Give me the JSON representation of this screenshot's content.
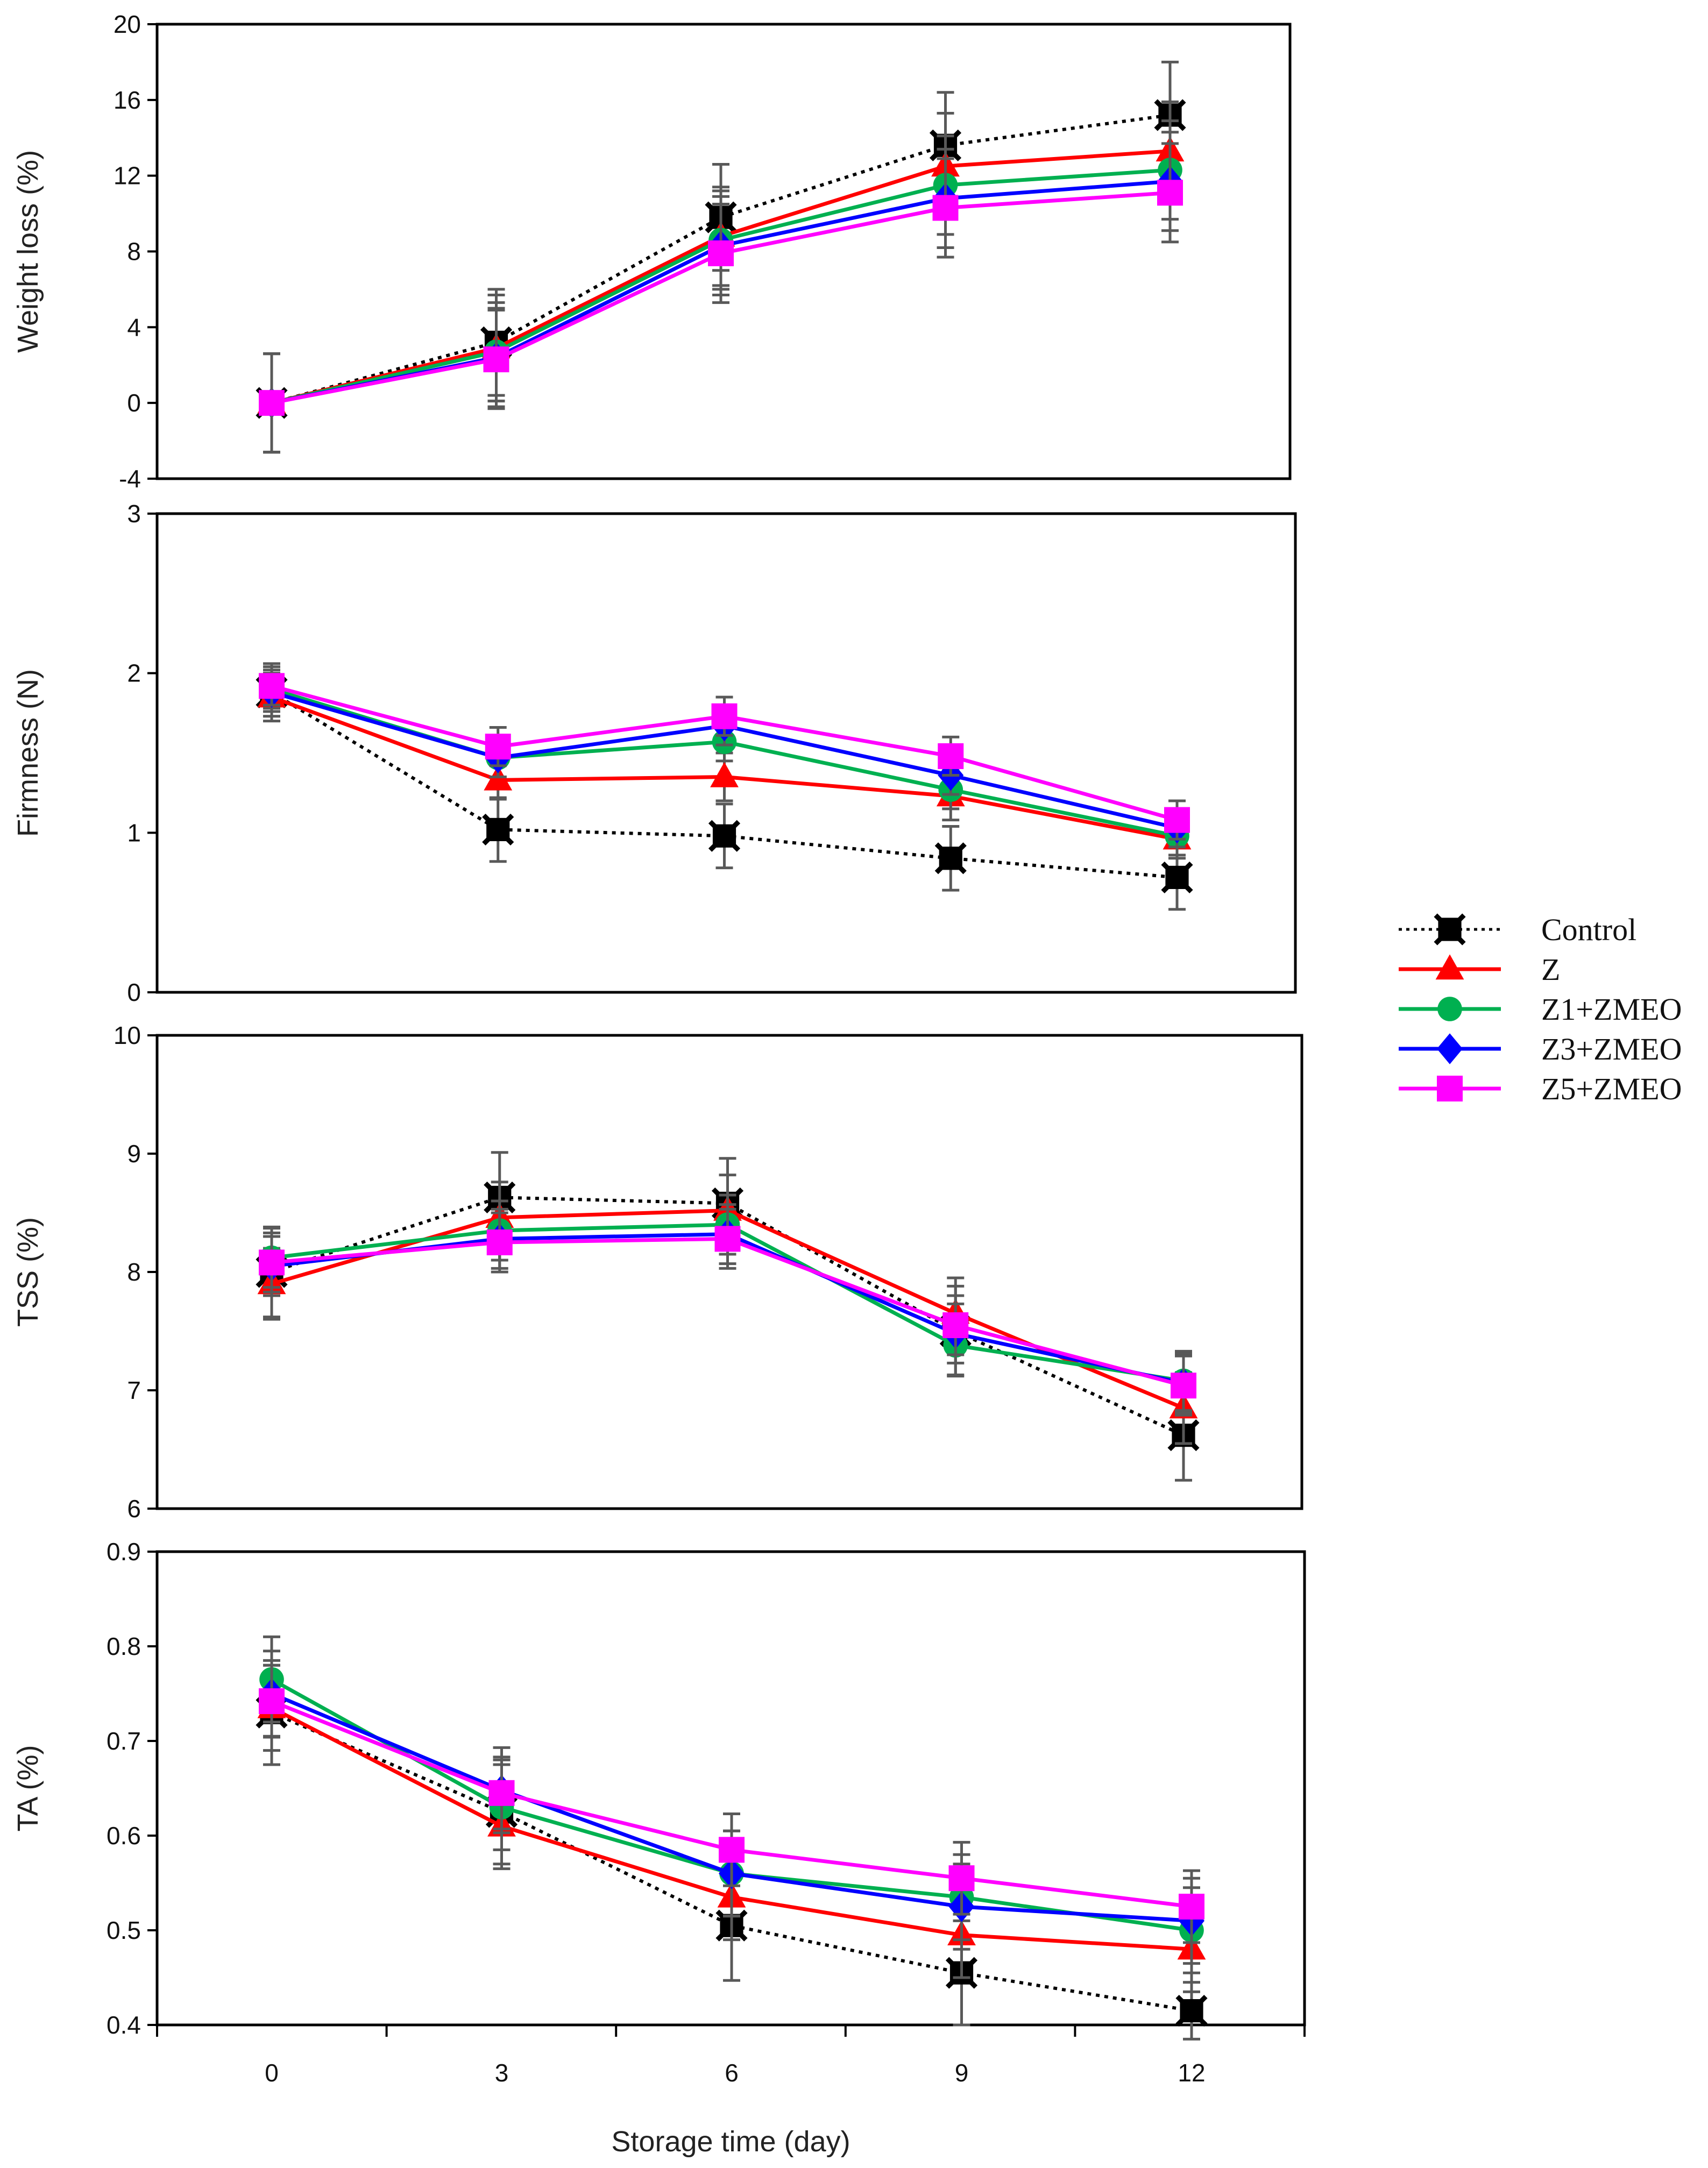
{
  "chart_data": [
    {
      "type": "line",
      "ylabel": "Weight loss (%)",
      "ylim": [
        -4,
        20
      ],
      "yticks": [
        -4,
        0,
        4,
        8,
        12,
        16,
        20
      ],
      "x": [
        0,
        3,
        6,
        9,
        12
      ],
      "series": [
        {
          "name": "Control",
          "values": [
            0,
            3.2,
            9.8,
            13.6,
            15.2
          ],
          "err": [
            2.6,
            2.8,
            2.8,
            2.8,
            2.8
          ]
        },
        {
          "name": "Z",
          "values": [
            0,
            2.9,
            8.8,
            12.5,
            13.3
          ],
          "err": [
            2.6,
            2.8,
            2.6,
            2.8,
            2.6
          ]
        },
        {
          "name": "Z1+ZMEO",
          "values": [
            0,
            2.7,
            8.6,
            11.5,
            12.3
          ],
          "err": [
            2.6,
            2.6,
            2.6,
            2.6,
            2.6
          ]
        },
        {
          "name": "Z3+ZMEO",
          "values": [
            0,
            2.4,
            8.3,
            10.8,
            11.7
          ],
          "err": [
            2.6,
            2.6,
            2.6,
            2.6,
            2.6
          ]
        },
        {
          "name": "Z5+ZMEO",
          "values": [
            0,
            2.3,
            7.9,
            10.3,
            11.1
          ],
          "err": [
            2.6,
            2.6,
            2.6,
            2.6,
            2.6
          ]
        }
      ]
    },
    {
      "type": "line",
      "ylabel": "Firmness (N)",
      "ylim": [
        0,
        3
      ],
      "yticks": [
        0,
        1,
        2,
        3
      ],
      "x": [
        0,
        3,
        6,
        9,
        12
      ],
      "series": [
        {
          "name": "Control",
          "values": [
            1.88,
            1.02,
            0.98,
            0.84,
            0.72
          ],
          "err": [
            0.18,
            0.2,
            0.2,
            0.2,
            0.2
          ]
        },
        {
          "name": "Z",
          "values": [
            1.85,
            1.33,
            1.35,
            1.23,
            0.96
          ],
          "err": [
            0.12,
            0.12,
            0.15,
            0.15,
            0.12
          ]
        },
        {
          "name": "Z1+ZMEO",
          "values": [
            1.9,
            1.47,
            1.57,
            1.27,
            0.98
          ],
          "err": [
            0.12,
            0.12,
            0.12,
            0.12,
            0.12
          ]
        },
        {
          "name": "Z3+ZMEO",
          "values": [
            1.88,
            1.47,
            1.67,
            1.36,
            1.03
          ],
          "err": [
            0.12,
            0.12,
            0.12,
            0.12,
            0.12
          ]
        },
        {
          "name": "Z5+ZMEO",
          "values": [
            1.92,
            1.54,
            1.73,
            1.48,
            1.08
          ],
          "err": [
            0.12,
            0.12,
            0.12,
            0.12,
            0.12
          ]
        }
      ]
    },
    {
      "type": "line",
      "ylabel": "TSS (%)",
      "ylim": [
        6,
        10
      ],
      "yticks": [
        6,
        7,
        8,
        9,
        10
      ],
      "x": [
        0,
        3,
        6,
        9,
        12
      ],
      "series": [
        {
          "name": "Control",
          "values": [
            8.0,
            8.63,
            8.58,
            7.5,
            6.62
          ],
          "err": [
            0.38,
            0.38,
            0.38,
            0.38,
            0.38
          ]
        },
        {
          "name": "Z",
          "values": [
            7.9,
            8.46,
            8.52,
            7.65,
            6.85
          ],
          "err": [
            0.3,
            0.3,
            0.3,
            0.3,
            0.3
          ]
        },
        {
          "name": "Z1+ZMEO",
          "values": [
            8.12,
            8.35,
            8.4,
            7.38,
            7.08
          ],
          "err": [
            0.25,
            0.25,
            0.25,
            0.25,
            0.25
          ]
        },
        {
          "name": "Z3+ZMEO",
          "values": [
            8.05,
            8.28,
            8.32,
            7.48,
            7.06
          ],
          "err": [
            0.25,
            0.25,
            0.25,
            0.25,
            0.25
          ]
        },
        {
          "name": "Z5+ZMEO",
          "values": [
            8.08,
            8.25,
            8.28,
            7.55,
            7.04
          ],
          "err": [
            0.25,
            0.25,
            0.25,
            0.25,
            0.25
          ]
        }
      ]
    },
    {
      "type": "line",
      "ylabel": "TA (%)",
      "xlabel": "Storage time (day)",
      "ylim": [
        0.4,
        0.9
      ],
      "yticks": [
        0.4,
        0.5,
        0.6,
        0.7,
        0.8,
        0.9
      ],
      "yticklabels": [
        "0.4",
        "0.5",
        "0.6",
        "0.7",
        "0.8",
        "0.9"
      ],
      "x": [
        0,
        3,
        6,
        9,
        12
      ],
      "xticklabels": [
        "0",
        "3",
        "6",
        "9",
        "12"
      ],
      "series": [
        {
          "name": "Control",
          "values": [
            0.73,
            0.625,
            0.505,
            0.455,
            0.415
          ],
          "err": [
            0.055,
            0.055,
            0.058,
            0.055,
            0.03
          ]
        },
        {
          "name": "Z",
          "values": [
            0.735,
            0.61,
            0.535,
            0.495,
            0.48
          ],
          "err": [
            0.045,
            0.045,
            0.045,
            0.045,
            0.045
          ]
        },
        {
          "name": "Z1+ZMEO",
          "values": [
            0.765,
            0.63,
            0.56,
            0.535,
            0.5
          ],
          "err": [
            0.045,
            0.045,
            0.045,
            0.045,
            0.045
          ]
        },
        {
          "name": "Z3+ZMEO",
          "values": [
            0.75,
            0.648,
            0.56,
            0.525,
            0.51
          ],
          "err": [
            0.045,
            0.045,
            0.045,
            0.045,
            0.045
          ]
        },
        {
          "name": "Z5+ZMEO",
          "values": [
            0.742,
            0.645,
            0.585,
            0.555,
            0.525
          ],
          "err": [
            0.038,
            0.038,
            0.038,
            0.038,
            0.038
          ]
        }
      ]
    }
  ],
  "series_styles": [
    {
      "name": "Control",
      "color": "#000000",
      "marker": "x-square",
      "dash": "dotted"
    },
    {
      "name": "Z",
      "color": "#ff0000",
      "marker": "triangle",
      "dash": "solid"
    },
    {
      "name": "Z1+ZMEO",
      "color": "#00b050",
      "marker": "circle",
      "dash": "solid"
    },
    {
      "name": "Z3+ZMEO",
      "color": "#0000ff",
      "marker": "diamond",
      "dash": "solid"
    },
    {
      "name": "Z5+ZMEO",
      "color": "#ff00ff",
      "marker": "square",
      "dash": "solid"
    }
  ],
  "legend": {
    "position": "right",
    "entries": [
      "Control",
      "Z",
      "Z1+ZMEO",
      "Z3+ZMEO",
      "Z5+ZMEO"
    ]
  },
  "errorbar_color": "#595959"
}
